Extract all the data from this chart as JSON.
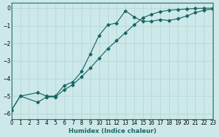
{
  "xlabel": "Humidex (Indice chaleur)",
  "bg_color": "#cce8e8",
  "grid_color": "#b8d8d8",
  "line_color": "#1a6666",
  "xlim": [
    0,
    23
  ],
  "ylim": [
    -6.3,
    0.3
  ],
  "xticks": [
    0,
    1,
    2,
    3,
    4,
    5,
    6,
    7,
    8,
    9,
    10,
    11,
    12,
    13,
    14,
    15,
    16,
    17,
    18,
    19,
    20,
    21,
    22,
    23
  ],
  "yticks": [
    0,
    -1,
    -2,
    -3,
    -4,
    -5,
    -6
  ],
  "line1_x": [
    0,
    1,
    3,
    4,
    5,
    6,
    7,
    8,
    9,
    10,
    11,
    12,
    13,
    14,
    15,
    16,
    17,
    18,
    19,
    20,
    21,
    22,
    23
  ],
  "line1_y": [
    -5.8,
    -5.0,
    -4.8,
    -5.0,
    -5.0,
    -4.4,
    -4.2,
    -3.6,
    -2.6,
    -1.55,
    -0.95,
    -0.85,
    -0.15,
    -0.5,
    -0.75,
    -0.75,
    -0.65,
    -0.7,
    -0.6,
    -0.45,
    -0.25,
    -0.12,
    -0.05
  ],
  "line2_x": [
    0,
    1,
    3,
    4,
    5,
    6,
    7,
    8,
    9,
    10,
    11,
    12,
    13,
    14,
    15,
    16,
    17,
    18,
    19,
    20,
    21,
    22,
    23
  ],
  "line2_y": [
    -5.8,
    -5.0,
    -5.35,
    -5.05,
    -5.05,
    -4.65,
    -4.35,
    -3.9,
    -3.4,
    -2.85,
    -2.3,
    -1.85,
    -1.4,
    -0.95,
    -0.55,
    -0.35,
    -0.2,
    -0.12,
    -0.08,
    -0.05,
    -0.02,
    -0.01,
    -0.0
  ]
}
